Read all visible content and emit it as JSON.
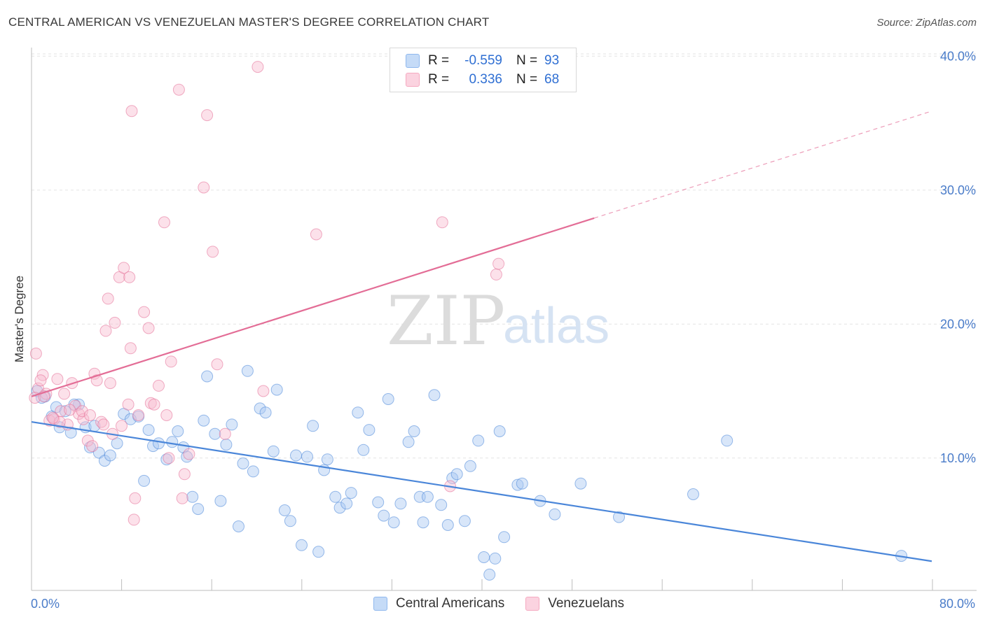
{
  "title": "CENTRAL AMERICAN VS VENEZUELAN MASTER'S DEGREE CORRELATION CHART",
  "source": "Source: ZipAtlas.com",
  "watermark": {
    "zip": "ZIP",
    "atlas": "atlas"
  },
  "legend": {
    "rows": [
      {
        "r_label": "R =",
        "r_value": "-0.559",
        "n_label": "N =",
        "n_value": "93",
        "color": "#8fb8ee"
      },
      {
        "r_label": "R =",
        "r_value": "0.336",
        "n_label": "N =",
        "n_value": "68",
        "color": "#f5a9c0"
      }
    ]
  },
  "bottom_legend": [
    {
      "label": "Central Americans",
      "color": "#8fb8ee"
    },
    {
      "label": "Venezuelans",
      "color": "#f5a9c0"
    }
  ],
  "chart_data": {
    "type": "scatter",
    "title": "CENTRAL AMERICAN VS VENEZUELAN MASTER'S DEGREE CORRELATION CHART",
    "xlabel": "",
    "ylabel": "Master's Degree",
    "xlim": [
      0,
      80
    ],
    "ylim": [
      0,
      41
    ],
    "x_tick_labels": [
      "0.0%",
      "80.0%"
    ],
    "y_ticks": [
      10,
      20,
      30,
      40
    ],
    "y_tick_labels": [
      "10.0%",
      "20.0%",
      "30.0%",
      "40.0%"
    ],
    "grid": true,
    "series": [
      {
        "name": "Central Americans",
        "color": "#4a86d9",
        "fill": "#a9c8f2",
        "trend": {
          "x0": 0,
          "y0": 12.7,
          "x1": 80,
          "y1": 2.3,
          "dashed_from": null
        },
        "points": [
          [
            0.5,
            15.0
          ],
          [
            1.2,
            14.6
          ],
          [
            1.8,
            13.1
          ],
          [
            2.2,
            13.8
          ],
          [
            2.5,
            12.3
          ],
          [
            3.0,
            13.5
          ],
          [
            3.5,
            11.9
          ],
          [
            4.2,
            14.0
          ],
          [
            4.8,
            12.3
          ],
          [
            5.2,
            10.8
          ],
          [
            5.6,
            12.4
          ],
          [
            6.0,
            10.4
          ],
          [
            6.5,
            9.8
          ],
          [
            7.0,
            10.2
          ],
          [
            7.6,
            11.1
          ],
          [
            8.2,
            13.3
          ],
          [
            8.8,
            12.9
          ],
          [
            9.5,
            13.1
          ],
          [
            10.0,
            8.3
          ],
          [
            10.4,
            12.1
          ],
          [
            10.8,
            10.9
          ],
          [
            11.3,
            11.1
          ],
          [
            12.0,
            9.9
          ],
          [
            12.5,
            11.2
          ],
          [
            13.0,
            12.0
          ],
          [
            13.5,
            10.8
          ],
          [
            13.8,
            10.1
          ],
          [
            14.3,
            7.1
          ],
          [
            14.8,
            6.2
          ],
          [
            15.3,
            12.8
          ],
          [
            15.6,
            16.1
          ],
          [
            16.3,
            11.8
          ],
          [
            16.8,
            6.8
          ],
          [
            17.3,
            11.0
          ],
          [
            17.8,
            12.5
          ],
          [
            18.4,
            4.9
          ],
          [
            18.8,
            9.6
          ],
          [
            19.2,
            16.5
          ],
          [
            19.7,
            9.0
          ],
          [
            20.3,
            13.7
          ],
          [
            20.8,
            13.4
          ],
          [
            21.5,
            10.5
          ],
          [
            21.8,
            15.1
          ],
          [
            22.5,
            6.1
          ],
          [
            23.0,
            5.3
          ],
          [
            23.5,
            10.2
          ],
          [
            24.0,
            3.5
          ],
          [
            24.5,
            10.1
          ],
          [
            25.0,
            12.4
          ],
          [
            25.5,
            3.0
          ],
          [
            26.0,
            9.1
          ],
          [
            26.3,
            9.9
          ],
          [
            27.0,
            7.1
          ],
          [
            27.4,
            6.3
          ],
          [
            28.0,
            6.6
          ],
          [
            28.4,
            7.4
          ],
          [
            29.0,
            13.4
          ],
          [
            29.5,
            10.6
          ],
          [
            30.0,
            12.1
          ],
          [
            30.8,
            6.7
          ],
          [
            31.3,
            5.7
          ],
          [
            31.7,
            14.4
          ],
          [
            32.2,
            5.2
          ],
          [
            32.8,
            6.6
          ],
          [
            33.5,
            11.2
          ],
          [
            34.0,
            12.0
          ],
          [
            34.5,
            7.1
          ],
          [
            34.8,
            5.2
          ],
          [
            35.2,
            7.1
          ],
          [
            35.8,
            14.7
          ],
          [
            36.4,
            6.5
          ],
          [
            37.0,
            5.0
          ],
          [
            37.4,
            8.5
          ],
          [
            37.8,
            8.8
          ],
          [
            38.5,
            5.3
          ],
          [
            39.0,
            9.4
          ],
          [
            39.7,
            11.3
          ],
          [
            40.2,
            2.6
          ],
          [
            40.7,
            1.3
          ],
          [
            41.2,
            2.5
          ],
          [
            41.6,
            12.0
          ],
          [
            42.0,
            4.1
          ],
          [
            43.2,
            8.0
          ],
          [
            43.6,
            8.1
          ],
          [
            45.2,
            6.8
          ],
          [
            46.5,
            5.8
          ],
          [
            48.8,
            8.1
          ],
          [
            52.2,
            5.6
          ],
          [
            58.8,
            7.3
          ],
          [
            61.8,
            11.3
          ],
          [
            77.3,
            2.7
          ],
          [
            0.9,
            14.5
          ],
          [
            3.8,
            14.0
          ]
        ]
      },
      {
        "name": "Venezuelans",
        "color": "#e36d96",
        "fill": "#f8bcd0",
        "trend": {
          "x0": 0,
          "y0": 14.6,
          "x1": 80,
          "y1": 35.9,
          "dashed_from": 50
        },
        "points": [
          [
            0.4,
            17.8
          ],
          [
            0.6,
            15.2
          ],
          [
            1.0,
            16.2
          ],
          [
            1.3,
            14.8
          ],
          [
            1.6,
            12.8
          ],
          [
            2.0,
            12.9
          ],
          [
            2.3,
            15.9
          ],
          [
            2.6,
            13.5
          ],
          [
            2.9,
            14.8
          ],
          [
            3.2,
            12.5
          ],
          [
            3.6,
            15.6
          ],
          [
            3.9,
            13.9
          ],
          [
            4.2,
            13.3
          ],
          [
            4.6,
            12.9
          ],
          [
            5.0,
            11.3
          ],
          [
            5.4,
            10.9
          ],
          [
            5.6,
            16.3
          ],
          [
            5.8,
            15.8
          ],
          [
            6.2,
            12.7
          ],
          [
            6.6,
            19.5
          ],
          [
            6.8,
            21.9
          ],
          [
            7.0,
            15.6
          ],
          [
            7.4,
            20.1
          ],
          [
            7.8,
            23.5
          ],
          [
            8.0,
            12.4
          ],
          [
            8.2,
            24.2
          ],
          [
            8.6,
            14.0
          ],
          [
            8.7,
            23.5
          ],
          [
            8.8,
            18.2
          ],
          [
            8.9,
            35.9
          ],
          [
            9.2,
            7.0
          ],
          [
            9.1,
            5.4
          ],
          [
            10.0,
            20.9
          ],
          [
            10.4,
            19.7
          ],
          [
            10.6,
            14.1
          ],
          [
            11.3,
            15.4
          ],
          [
            11.8,
            27.6
          ],
          [
            12.0,
            13.2
          ],
          [
            12.2,
            10.0
          ],
          [
            12.4,
            17.2
          ],
          [
            13.1,
            37.5
          ],
          [
            13.4,
            7.0
          ],
          [
            13.6,
            8.8
          ],
          [
            14.0,
            10.3
          ],
          [
            15.3,
            30.2
          ],
          [
            15.6,
            35.6
          ],
          [
            16.1,
            25.4
          ],
          [
            16.5,
            17.0
          ],
          [
            17.2,
            11.8
          ],
          [
            20.1,
            39.2
          ],
          [
            20.6,
            15.0
          ],
          [
            25.3,
            26.7
          ],
          [
            36.5,
            27.6
          ],
          [
            37.2,
            7.9
          ],
          [
            41.3,
            23.7
          ],
          [
            41.5,
            24.5
          ],
          [
            0.3,
            14.5
          ],
          [
            1.1,
            14.6
          ],
          [
            2.5,
            12.7
          ],
          [
            3.4,
            13.6
          ],
          [
            4.5,
            13.5
          ],
          [
            5.2,
            13.2
          ],
          [
            6.4,
            12.5
          ],
          [
            7.2,
            11.8
          ],
          [
            9.5,
            13.2
          ],
          [
            10.9,
            14.0
          ],
          [
            1.9,
            13.0
          ],
          [
            0.8,
            15.8
          ]
        ]
      }
    ]
  }
}
